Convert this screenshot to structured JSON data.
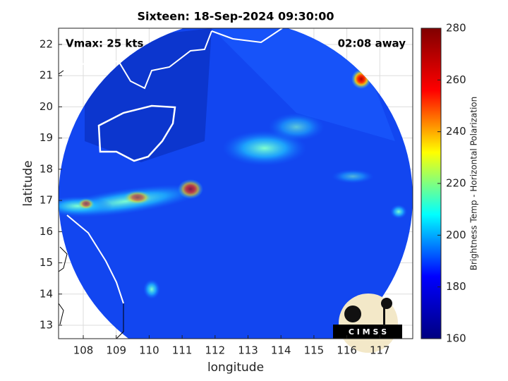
{
  "chart_data": {
    "type": "map",
    "title": "Sixteen: 18-Sep-2024 09:30:00",
    "annotations": [
      "Vmax: 25 kts",
      "02:08 away"
    ],
    "x_label": "longitude",
    "y_label": "latitude",
    "xlim": [
      107.25,
      118.0
    ],
    "xticks": [
      108,
      109,
      110,
      111,
      112,
      113,
      114,
      115,
      116,
      117
    ],
    "ylim": [
      12.57,
      22.52
    ],
    "yticks": [
      13,
      14,
      15,
      16,
      17,
      18,
      19,
      20,
      21,
      22
    ],
    "grid": true,
    "colorbar": {
      "label": "Brightness Temp - Horizontal Polarization",
      "colormap": "jet",
      "lim": [
        160,
        280
      ],
      "ticks": [
        160,
        180,
        200,
        220,
        240,
        260,
        280
      ]
    },
    "logo": "C I M S S"
  }
}
